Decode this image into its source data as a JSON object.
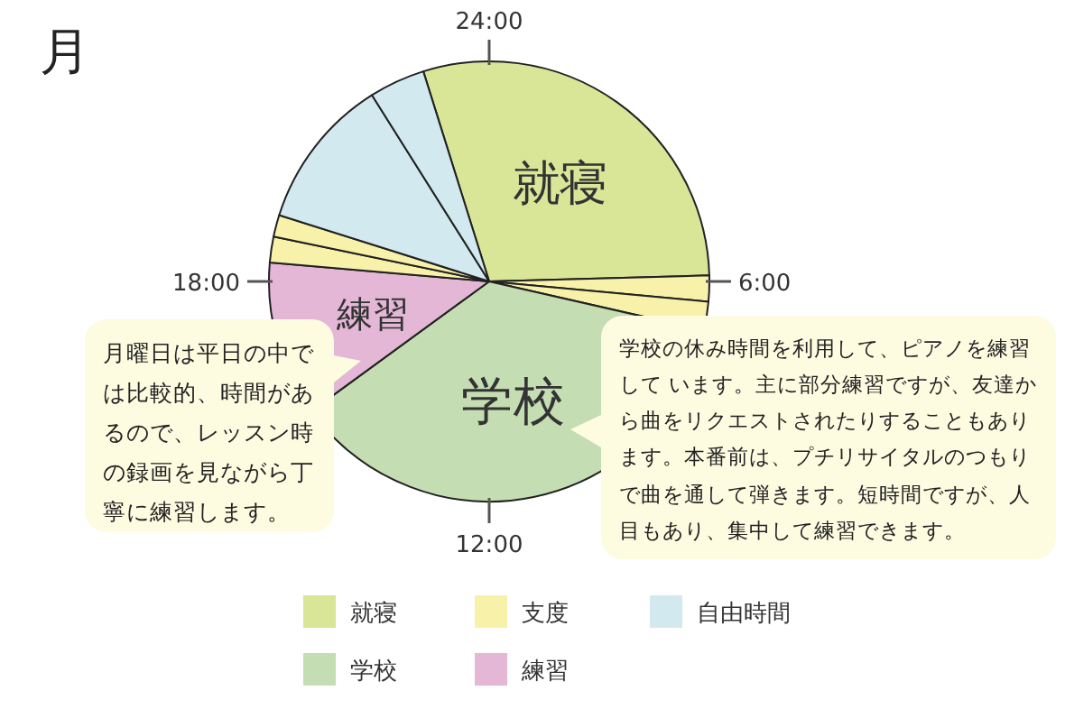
{
  "chart_data": {
    "type": "pie",
    "title": "月",
    "categories": [
      "就寝",
      "支度",
      null,
      "学校",
      "練習",
      null,
      null,
      "自由時間",
      null
    ],
    "values": [
      29.4,
      1.9,
      2.1,
      36.4,
      11.4,
      1.9,
      1.6,
      11.2,
      4.1
    ],
    "colors": [
      "#d9e597",
      "#f8f1a9",
      "#f8f1a9",
      "#c5ddb2",
      "#e3b7d5",
      "#f8f1a9",
      "#f8f1a9",
      "#d2e9ef",
      "#d2e9ef"
    ],
    "annotations": [
      "24:00",
      "6:00",
      "12:00",
      "18:00",
      {
        "text": "就寝",
        "x": "就寝"
      },
      {
        "text": "学校",
        "x": "学校"
      },
      {
        "text": "練習",
        "x": "練習"
      },
      {
        "text": "月曜日は平日の中では比較的、時間があるので、レッスン時の録画を見ながら丁寧に練習します。",
        "x": "練習"
      },
      {
        "text": "学校の休み時間を利用して、ピアノを練習して います。主に部分練習ですが、友達から曲をリクエストされたりすることもあります。本番前は、プチリサイタルのつもりで曲を通して弾きます。短時間ですが、人目もあり、集中して練習できます。",
        "x": "学校"
      }
    ],
    "legend": "bottom"
  }
}
